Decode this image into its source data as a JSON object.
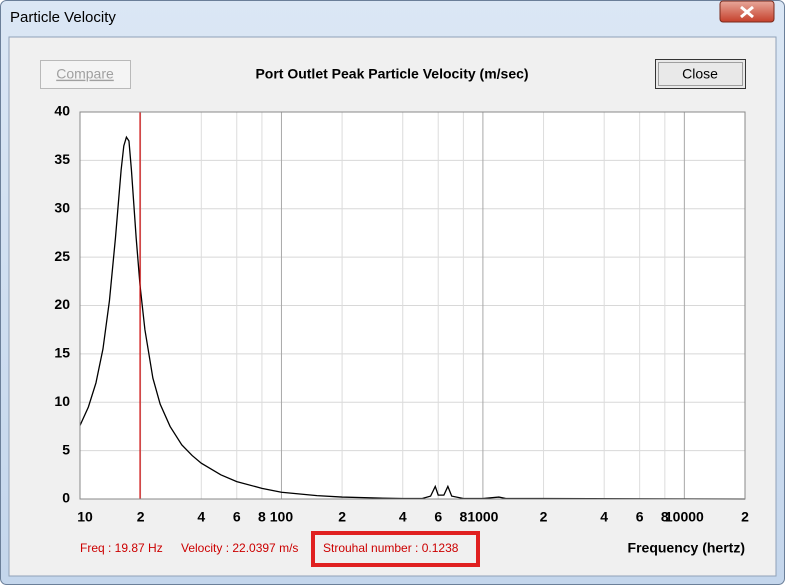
{
  "window": {
    "title": "Particle Velocity"
  },
  "buttons": {
    "compare": "Compare",
    "close": "Close"
  },
  "chart_data": {
    "type": "line",
    "title": "Port Outlet Peak Particle Velocity (m/sec)",
    "x_label": "Frequency (hertz)",
    "color": "#000000",
    "log_x": true,
    "grid": true,
    "x": [
      10,
      11,
      12,
      13,
      14,
      15,
      16,
      16.5,
      17,
      17.5,
      18,
      19,
      19.87,
      21,
      23,
      25,
      28,
      32,
      36,
      40,
      50,
      60,
      80,
      100,
      150,
      200,
      300,
      400,
      500,
      550,
      580,
      600,
      640,
      670,
      700,
      800,
      1000,
      1200,
      1300,
      2000,
      20000
    ],
    "values": [
      7.6,
      9.5,
      12,
      15.5,
      20.5,
      27,
      34,
      36.5,
      37.4,
      37,
      34,
      27,
      22.04,
      17.5,
      12.5,
      9.8,
      7.5,
      5.6,
      4.5,
      3.7,
      2.5,
      1.8,
      1.1,
      0.7,
      0.35,
      0.2,
      0.1,
      0.05,
      0.05,
      0.3,
      1.3,
      0.4,
      0.4,
      1.3,
      0.3,
      0.05,
      0.05,
      0.2,
      0.05,
      0.05,
      0
    ],
    "xlim": [
      10,
      20000
    ],
    "ylim": [
      0,
      40
    ],
    "xticks": [
      10,
      {
        "value": 20,
        "label": "2"
      },
      {
        "value": 40,
        "label": "4"
      },
      {
        "value": 60,
        "label": "6"
      },
      {
        "value": 80,
        "label": "8"
      },
      100,
      {
        "value": 200,
        "label": "2"
      },
      {
        "value": 400,
        "label": "4"
      },
      {
        "value": 600,
        "label": "6"
      },
      {
        "value": 800,
        "label": "8"
      },
      1000,
      {
        "value": 2000,
        "label": "2"
      },
      {
        "value": 4000,
        "label": "4"
      },
      {
        "value": 6000,
        "label": "6"
      },
      {
        "value": 8000,
        "label": "8"
      },
      10000,
      {
        "value": 20000,
        "label": "2"
      }
    ],
    "yticks": [
      0,
      5,
      10,
      15,
      20,
      25,
      30,
      35,
      40
    ],
    "marker_x": 19.87,
    "marker_color": "#cc0000",
    "annotations": [
      "Freq : 19.87 Hz",
      "Velocity : 22.0397 m/s",
      "Strouhal number : 0.1238"
    ]
  }
}
